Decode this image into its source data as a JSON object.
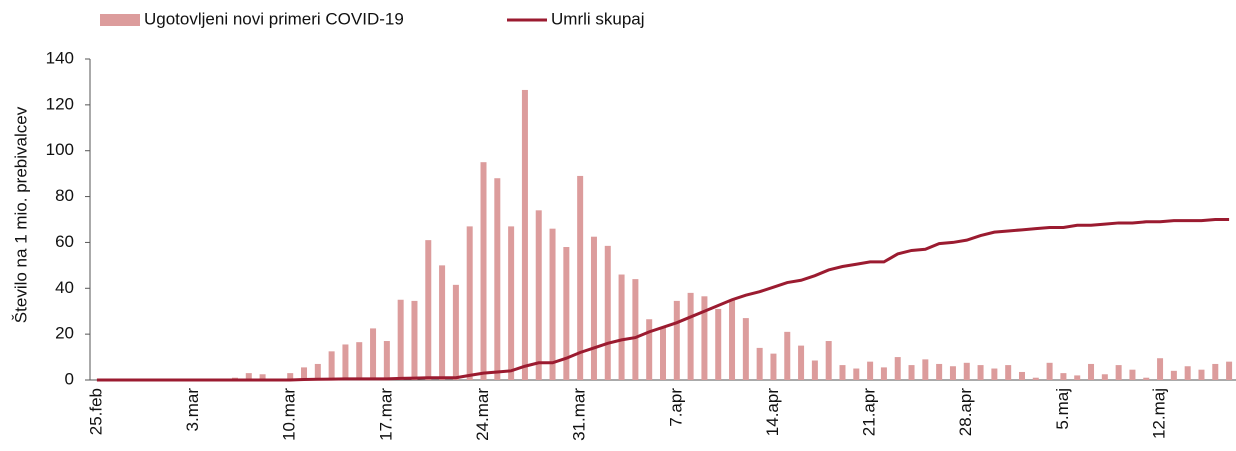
{
  "chart_data": {
    "type": "bar_line",
    "y_label": "Število na 1 mio. prebivalcev",
    "categories": [
      "25.feb",
      null,
      null,
      null,
      null,
      null,
      null,
      "3.mar",
      null,
      null,
      null,
      null,
      null,
      null,
      "10.mar",
      null,
      null,
      null,
      null,
      null,
      null,
      "17.mar",
      null,
      null,
      null,
      null,
      null,
      null,
      "24.mar",
      null,
      null,
      null,
      null,
      null,
      null,
      "31.mar",
      null,
      null,
      null,
      null,
      null,
      null,
      "7.apr",
      null,
      null,
      null,
      null,
      null,
      null,
      "14.apr",
      null,
      null,
      null,
      null,
      null,
      null,
      "21.apr",
      null,
      null,
      null,
      null,
      null,
      null,
      "28.apr",
      null,
      null,
      null,
      null,
      null,
      null,
      "5.maj",
      null,
      null,
      null,
      null,
      null,
      null,
      "12.maj",
      null,
      null,
      null,
      null,
      null
    ],
    "series": [
      {
        "name": "Ugotovljeni novi primeri COVID-19",
        "type": "bar",
        "color": "#dc9c9c",
        "values": [
          0,
          0,
          0,
          0,
          0,
          0,
          0,
          0,
          0,
          0,
          1,
          3,
          2.5,
          0,
          3,
          5.5,
          7,
          12.5,
          15.5,
          16.5,
          22.5,
          17,
          35,
          34.5,
          61,
          50,
          41.5,
          67,
          95,
          88,
          67,
          126.5,
          74,
          66,
          58,
          89,
          62.5,
          58.5,
          46,
          44,
          26.5,
          23,
          34.5,
          38,
          36.5,
          31,
          35,
          27,
          14,
          11.5,
          21,
          15,
          8.5,
          17,
          6.5,
          5,
          8,
          5.5,
          10,
          6.5,
          9,
          7,
          6,
          7.5,
          6.5,
          5,
          6.5,
          3.5,
          1,
          7.5,
          3,
          2,
          7,
          2.5,
          6.5,
          4.5,
          1,
          9.5,
          4,
          6,
          4.5,
          7,
          8
        ]
      },
      {
        "name": "Umrli skupaj",
        "type": "line",
        "color": "#9b1b30",
        "values": [
          0,
          0,
          0,
          0,
          0,
          0,
          0,
          0,
          0,
          0,
          0,
          0,
          0,
          0,
          0,
          0.2,
          0.3,
          0.4,
          0.5,
          0.5,
          0.5,
          0.5,
          0.7,
          0.8,
          1,
          1,
          1,
          2,
          3,
          3.5,
          4,
          6,
          7.5,
          7.5,
          9.5,
          12,
          14,
          16,
          17.5,
          18.5,
          21,
          23,
          25,
          27.5,
          30,
          32.5,
          35,
          37,
          38.5,
          40.5,
          42.5,
          43.5,
          45.5,
          48,
          49.5,
          50.5,
          51.5,
          51.5,
          55,
          56.5,
          57,
          59.5,
          60,
          61,
          63,
          64.5,
          65,
          65.5,
          66,
          66.5,
          66.5,
          67.5,
          67.5,
          68,
          68.5,
          68.5,
          69,
          69,
          69.5,
          69.5,
          69.5,
          70,
          70
        ]
      }
    ],
    "ylim": [
      0,
      140
    ],
    "yticks": [
      0,
      20,
      40,
      60,
      80,
      100,
      120,
      140
    ],
    "grid": false,
    "legend": "top"
  }
}
